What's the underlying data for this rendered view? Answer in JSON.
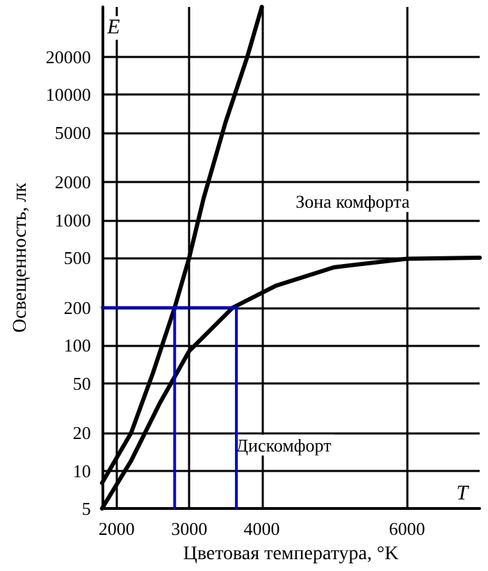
{
  "chart_data": {
    "type": "line",
    "xlabel": "Цветовая температура, °K",
    "ylabel": "Освещенность, лк",
    "log": "y",
    "grid": true,
    "marker": "none",
    "line_style": "solid",
    "xlim": [
      1800,
      7000
    ],
    "xticks": [
      2000,
      3000,
      4000,
      6000
    ],
    "ylim": [
      5,
      50000
    ],
    "yticks": [
      5,
      10,
      20,
      50,
      100,
      200,
      500,
      1000,
      2000,
      5000,
      10000,
      20000
    ],
    "annotations": [
      "E",
      "T",
      "Зона комфорта",
      "Дискомфорт"
    ],
    "series": [
      {
        "color": "#000000",
        "x": [
          1800,
          2200,
          2500,
          2800,
          3000,
          3200,
          3500,
          3800,
          4000
        ],
        "values": [
          8,
          20,
          60,
          200,
          500,
          1500,
          6000,
          20000,
          50000
        ]
      },
      {
        "color": "#000000",
        "x": [
          1800,
          2200,
          2600,
          3000,
          3600,
          4200,
          5000,
          6000,
          7000
        ],
        "values": [
          5,
          12,
          35,
          90,
          200,
          300,
          420,
          490,
          500
        ]
      },
      {
        "color": "#0000cc",
        "x": [
          1800,
          3650
        ],
        "values": [
          200,
          200
        ]
      },
      {
        "color": "#0000cc",
        "x": [
          2800,
          2800
        ],
        "values": [
          5,
          200
        ]
      },
      {
        "color": "#0000cc",
        "x": [
          3650,
          3650
        ],
        "values": [
          5,
          200
        ]
      }
    ]
  }
}
